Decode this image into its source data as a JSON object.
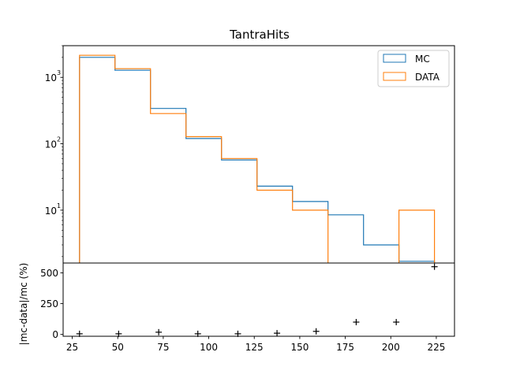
{
  "chart_data": [
    {
      "type": "step-histogram",
      "title": "TantraHits",
      "yscale": "log",
      "xlim": [
        20,
        235
      ],
      "ylim": [
        1.6,
        3000
      ],
      "y_ticks": [
        10,
        100,
        1000
      ],
      "y_tick_labels": [
        "10",
        "10",
        "10"
      ],
      "y_tick_exponents": [
        "1",
        "2",
        "3"
      ],
      "legend": {
        "placement": "top-right"
      },
      "bin_edges": [
        29,
        48.5,
        68,
        87.5,
        107,
        126.5,
        146,
        165.5,
        185,
        204.5,
        224
      ],
      "series": [
        {
          "name": "MC",
          "color": "#1f77b4",
          "values": [
            2000,
            1280,
            340,
            120,
            57,
            23,
            13.5,
            8.5,
            3.0,
            1.7
          ]
        },
        {
          "name": "DATA",
          "color": "#ff7f0e",
          "values": [
            2150,
            1350,
            285,
            128,
            60,
            20,
            10,
            0,
            0,
            10
          ]
        }
      ]
    },
    {
      "type": "scatter",
      "ylabel": "|mc-data|/mc (%)",
      "xlim": [
        20,
        235
      ],
      "ylim": [
        -15,
        580
      ],
      "x_ticks": [
        25,
        50,
        75,
        100,
        125,
        150,
        175,
        200,
        225
      ],
      "y_ticks": [
        0,
        250,
        500
      ],
      "marker": "+",
      "color": "#000000",
      "x": [
        29,
        50.5,
        72.5,
        94,
        116,
        137.5,
        159,
        181,
        203,
        224
      ],
      "y": [
        5,
        5,
        18,
        5,
        5,
        10,
        25,
        100,
        100,
        550
      ]
    }
  ]
}
